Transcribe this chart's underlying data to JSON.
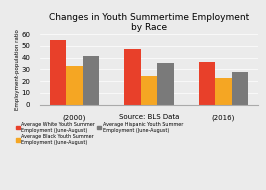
{
  "title": "Changes in Youth Summertime Employment\nby Race",
  "categories": [
    "(2000)",
    "Source: BLS Data",
    "(2016)"
  ],
  "series": {
    "White": [
      55,
      47,
      36
    ],
    "Black": [
      33,
      24,
      23
    ],
    "Hispanic": [
      41,
      35,
      28
    ]
  },
  "colors": {
    "White": "#e8402a",
    "Black": "#f5a623",
    "Hispanic": "#7a7a7a"
  },
  "ylabel": "Employment-population ratio",
  "ylim": [
    0,
    60
  ],
  "yticks": [
    0,
    10,
    20,
    30,
    40,
    50,
    60
  ],
  "legend_labels": {
    "White": "Average White Youth Summer\nEmployment (June-August)",
    "Black": "Average Black Youth Summer\nEmployment (June-August)",
    "Hispanic": "Average Hispanic Youth Summer\nEmployment (June-August)"
  },
  "background_color": "#ebebeb",
  "title_fontsize": 6.5,
  "label_fontsize": 4.0,
  "tick_fontsize": 5.0,
  "bar_width": 0.22
}
